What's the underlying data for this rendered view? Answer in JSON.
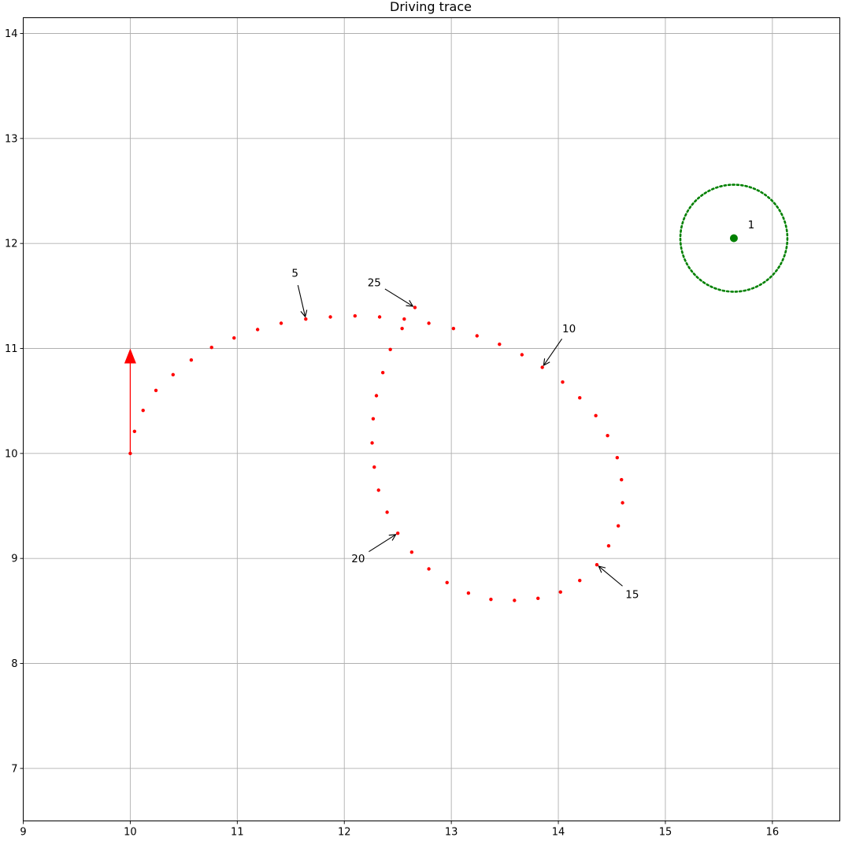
{
  "chart_data": {
    "type": "scatter",
    "title": "Driving trace",
    "xlabel": "",
    "ylabel": "",
    "xlim": [
      9,
      16.63
    ],
    "ylim": [
      6.5,
      14.15
    ],
    "xticks": [
      9,
      10,
      11,
      12,
      13,
      14,
      15,
      16
    ],
    "yticks": [
      7,
      8,
      9,
      10,
      11,
      12,
      13,
      14
    ],
    "grid": true,
    "colors": {
      "trace": "#ff0000",
      "goal": "#008000",
      "grid": "#b0b0b0",
      "arrow": "#000000"
    },
    "start_arrow": {
      "x": 10.0,
      "y": 10.0,
      "dx": 0.0,
      "dy": 1.0
    },
    "trace_points": [
      [
        10.0,
        10.0
      ],
      [
        10.04,
        10.21
      ],
      [
        10.12,
        10.41
      ],
      [
        10.24,
        10.6
      ],
      [
        10.4,
        10.75
      ],
      [
        10.57,
        10.89
      ],
      [
        10.76,
        11.01
      ],
      [
        10.97,
        11.1
      ],
      [
        11.19,
        11.18
      ],
      [
        11.41,
        11.24
      ],
      [
        11.64,
        11.28
      ],
      [
        11.87,
        11.3
      ],
      [
        12.1,
        11.31
      ],
      [
        12.33,
        11.3
      ],
      [
        12.56,
        11.28
      ],
      [
        12.79,
        11.24
      ],
      [
        13.02,
        11.19
      ],
      [
        13.24,
        11.12
      ],
      [
        13.45,
        11.04
      ],
      [
        13.66,
        10.94
      ],
      [
        13.85,
        10.82
      ],
      [
        14.04,
        10.68
      ],
      [
        14.2,
        10.53
      ],
      [
        14.35,
        10.36
      ],
      [
        14.46,
        10.17
      ],
      [
        14.55,
        9.96
      ],
      [
        14.59,
        9.75
      ],
      [
        14.6,
        9.53
      ],
      [
        14.56,
        9.31
      ],
      [
        14.47,
        9.12
      ],
      [
        14.36,
        8.94
      ],
      [
        14.2,
        8.79
      ],
      [
        14.02,
        8.68
      ],
      [
        13.81,
        8.62
      ],
      [
        13.59,
        8.6
      ],
      [
        13.37,
        8.61
      ],
      [
        13.16,
        8.67
      ],
      [
        12.96,
        8.77
      ],
      [
        12.79,
        8.9
      ],
      [
        12.63,
        9.06
      ],
      [
        12.5,
        9.24
      ],
      [
        12.4,
        9.44
      ],
      [
        12.32,
        9.65
      ],
      [
        12.28,
        9.87
      ],
      [
        12.26,
        10.1
      ],
      [
        12.27,
        10.33
      ],
      [
        12.3,
        10.55
      ],
      [
        12.36,
        10.77
      ],
      [
        12.43,
        10.99
      ],
      [
        12.54,
        11.19
      ],
      [
        12.66,
        11.39
      ]
    ],
    "annotations": [
      {
        "label": "5",
        "x": 11.64,
        "y": 11.28,
        "text_x": 11.54,
        "text_y": 11.72
      },
      {
        "label": "10",
        "x": 13.85,
        "y": 10.82,
        "text_x": 14.1,
        "text_y": 11.19
      },
      {
        "label": "15",
        "x": 14.36,
        "y": 8.94,
        "text_x": 14.69,
        "text_y": 8.66
      },
      {
        "label": "20",
        "x": 12.5,
        "y": 9.24,
        "text_x": 12.13,
        "text_y": 9.0
      },
      {
        "label": "25",
        "x": 12.66,
        "y": 11.39,
        "text_x": 12.28,
        "text_y": 11.63
      }
    ],
    "goal": {
      "label": "1",
      "x": 15.64,
      "y": 12.05,
      "radius": 0.5,
      "label_x": 15.77,
      "label_y": 12.18
    }
  }
}
